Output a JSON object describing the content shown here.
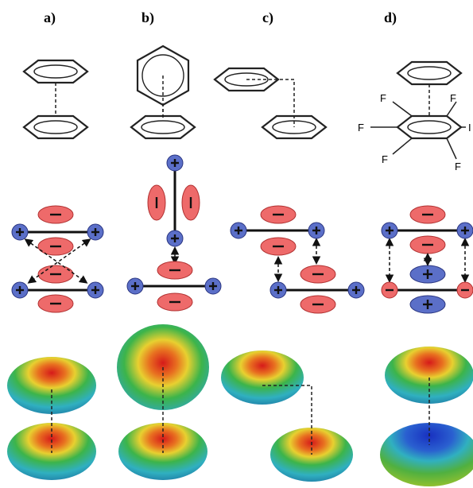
{
  "panels": [
    {
      "label": "a)"
    },
    {
      "label": "b)"
    },
    {
      "label": "c)"
    },
    {
      "label": "d)"
    }
  ],
  "substituents": [
    "F",
    "F",
    "F",
    "F",
    "F",
    "I"
  ]
}
